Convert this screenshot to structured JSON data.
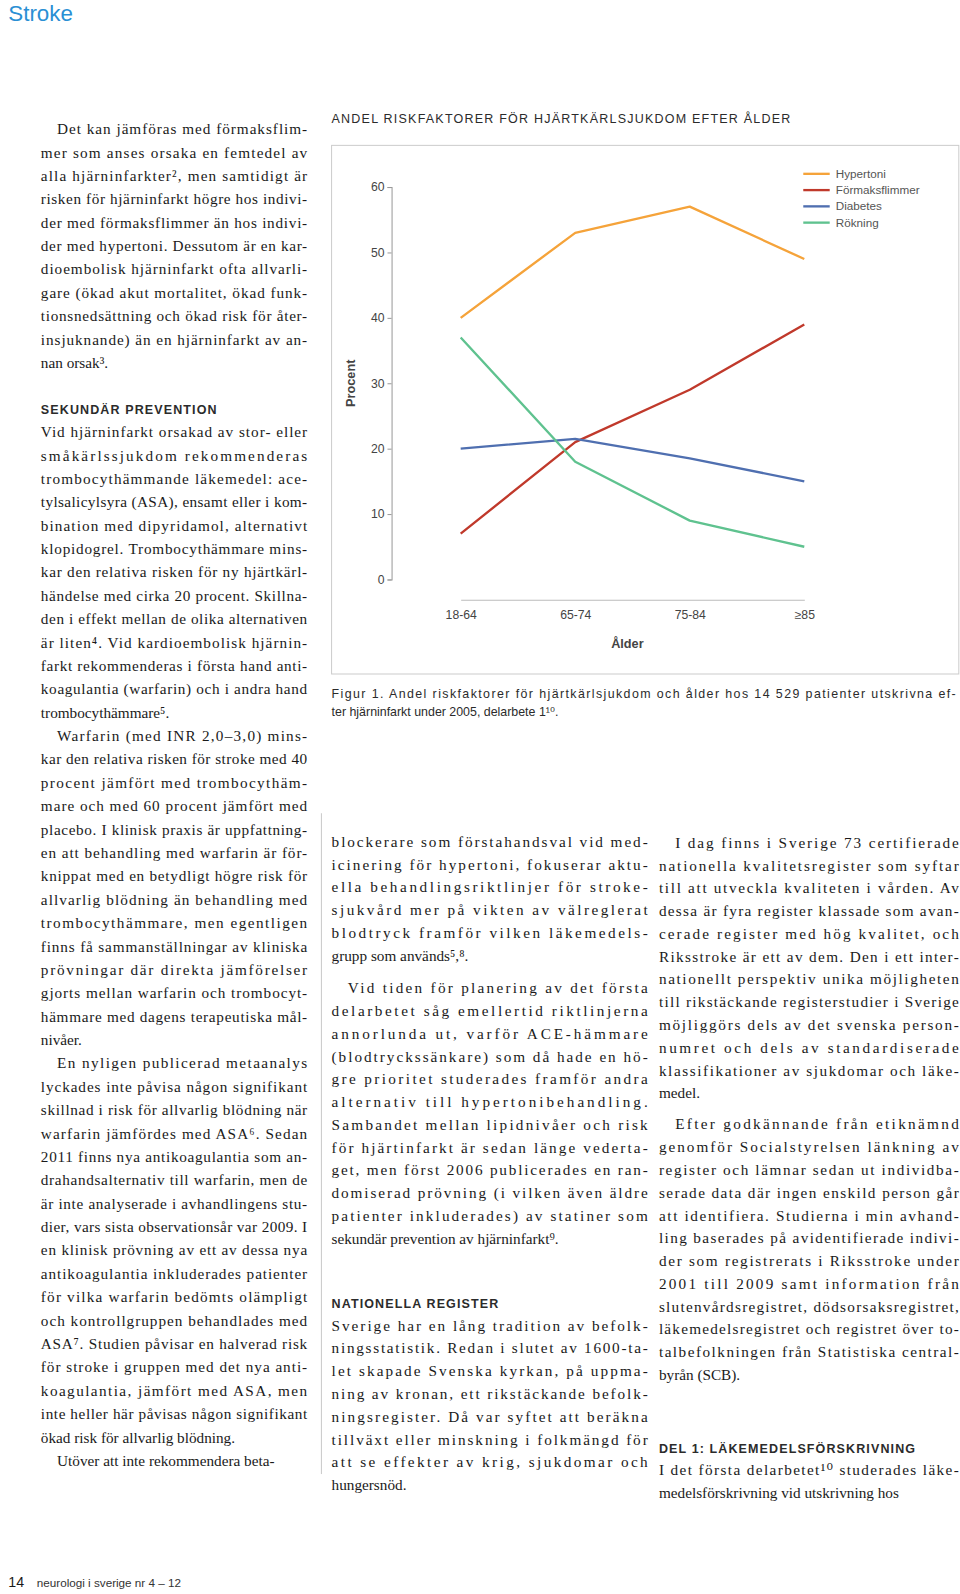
{
  "header": {
    "section": "Stroke"
  },
  "chart_data": {
    "type": "line",
    "title": "ANDEL RISKFAKTORER FÖR HJÄRTKÄRLSJUKDOM EFTER ÅLDER",
    "x_label": "Ålder",
    "y_label": "Procent",
    "categories": [
      "18-64",
      "65-74",
      "75-84",
      "≥85"
    ],
    "series": [
      {
        "name": "Hypertoni",
        "color": "#f5a33a",
        "values": [
          40,
          53,
          57,
          49
        ]
      },
      {
        "name": "Förmaksflimmer",
        "color": "#c0392b",
        "values": [
          7,
          21,
          29,
          39
        ]
      },
      {
        "name": "Diabetes",
        "color": "#4f6fb0",
        "values": [
          20,
          21.5,
          18.5,
          15
        ]
      },
      {
        "name": "Rökning",
        "color": "#5fc28f",
        "values": [
          37,
          18,
          9,
          5
        ]
      }
    ],
    "ylim": [
      0,
      60
    ],
    "yticks": [
      0,
      10,
      20,
      30,
      40,
      50,
      60
    ],
    "grid": false,
    "legend": "upper right"
  },
  "figure": {
    "caption": [
      "Figur 1. Andel riskfaktorer för hjärtkärlsjukdom och ålder hos 14 529 patienter utskrivna ef-",
      "ter hjärninfarkt under 2005, delarbete 1¹⁰."
    ]
  },
  "body": {
    "columns": [
      [
        {
          "lines": [
            "Det kan jämföras med förmaksflim-",
            "mer som anses orsaka en femtedel av",
            "alla hjärninfarkter², men samtidigt är",
            "risken för hjärninfarkt högre hos indivi-",
            "der med förmaksflimmer än hos indivi-",
            "der med hypertoni. Dessutom är en kar-",
            "dioembolisk hjärninfarkt ofta allvarli-",
            "gare (ökad akut mortalitet, ökad funk-",
            "tionsnedsättning och ökad risk för åter-",
            "insjuknande) än en hjärninfarkt av an-",
            "nan orsak³."
          ]
        },
        {
          "heading": "SEKUNDÄR PREVENTION"
        },
        {
          "lines": [
            "Vid hjärninfarkt orsakad av stor- eller",
            "småkärlssjukdom rekommenderas",
            "trombocythämmande läkemedel: ace-",
            "tylsalicylsyra (ASA), ensamt eller i kom-",
            "bination med dipyridamol, alternativt",
            "klopidogrel. Trombocythämmare mins-",
            "kar den relativa risken för ny hjärtkärl-",
            "händelse med cirka 20 procent. Skillna-",
            "den i effekt mellan de olika alternativen",
            "är liten⁴. Vid kardioembolisk hjärnin-",
            "farkt rekommenderas i första hand anti-",
            "koagulantia (warfarin) och i andra hand",
            "trombocythämmare⁵."
          ]
        },
        {
          "lines": [
            "Warfarin (med INR 2,0–3,0) mins-",
            "kar den relativa risken för stroke med 40",
            "procent jämfört med trombocythäm-",
            "mare och med 60 procent jämfört med",
            "placebo. I klinisk praxis är uppfattning-",
            "en att behandling med warfarin är för-",
            "knippat med en betydligt högre risk för",
            "allvarlig blödning än behandling med",
            "trombocythämmare, men egentligen",
            "finns få sammanställningar av kliniska",
            "prövningar där direkta jämförelser",
            "gjorts mellan warfarin och trombocyt-",
            "hämmare med dagens terapeutiska mål-",
            "nivåer."
          ]
        },
        {
          "lines": [
            "En nyligen publicerad metaanalys",
            "lyckades inte påvisa någon signifikant",
            "skillnad i risk för allvarlig blödning när",
            "warfarin jämfördes med ASA⁶. Sedan",
            "2011 finns nya antikoagulantia som an-",
            "drahandsalternativ till warfarin, men de",
            "är inte analyserade i avhandlingens stu-",
            "dier, vars sista observationsår var 2009. I",
            "en klinisk prövning av ett av dessa nya",
            "antikoagulantia inkluderades patienter",
            "för vilka warfarin bedömts olämpligt",
            "och kontrollgruppen behandlades med",
            "ASA⁷. Studien påvisar en halverad risk",
            "för stroke i gruppen med det nya anti-",
            "koagulantia, jämfört med ASA, men",
            "inte heller här påvisas någon signifikant",
            "ökad risk för allvarlig blödning."
          ]
        },
        {
          "lines": [
            "Utöver att inte rekommendera beta-"
          ]
        }
      ],
      [
        {
          "lines": [
            "blockerare som förstahandsval vid med-",
            "icinering för hypertoni, fokuserar aktu-",
            "ella behandlingsriktlinjer för stroke-",
            "sjukvård mer på vikten av välreglerat",
            "blodtryck framför vilken läkemedels-",
            "grupp som används⁵,⁸."
          ]
        },
        {
          "lines": [
            "Vid tiden för planering av det första",
            "delarbetet såg emellertid riktlinjerna",
            "annorlunda ut, varför ACE-hämmare",
            "(blodtryckssänkare) som då hade en hö-",
            "gre prioritet studerades framför andra",
            "alternativ till hypertonibehandling.",
            "Sambandet mellan lipidnivåer och risk",
            "för hjärtinfarkt är sedan länge vederta-",
            "get, men först 2006 publicerades en ran-",
            "domiserad prövning (i vilken även äldre",
            "patienter inkluderades) av statiner som",
            "sekundär prevention av hjärninfarkt⁹."
          ]
        },
        {
          "heading": "NATIONELLA REGISTER"
        },
        {
          "lines": [
            "Sverige har en lång tradition av befolk-",
            "ningsstatistik. Redan i slutet av 1600-ta-",
            "let skapade Svenska kyrkan, på uppma-",
            "ning av kronan, ett rikstäckande befolk-",
            "ningsregister. Då var syftet att beräkna",
            "tillväxt eller minskning i folkmängd för",
            "att se effekter av krig, sjukdomar och",
            "hungersnöd."
          ]
        }
      ],
      [
        {
          "lines": [
            "I dag finns i Sverige 73 certifierade",
            "nationella kvalitetsregister som syftar",
            "till att utveckla kvaliteten i vården. Av",
            "dessa är fyra register klassade som avan-",
            "cerade register med hög kvalitet, och",
            "Riksstroke är ett av dem. Den i ett inter-",
            "nationellt perspektiv unika möjligheten",
            "till rikstäckande registerstudier i Sverige",
            "möjliggörs dels av det svenska person-",
            "numret och dels av standardiserade",
            "klassifikationer av sjukdomar och läke-",
            "medel."
          ]
        },
        {
          "lines": [
            "Efter godkännande från etiknämnd",
            "genomför Socialstyrelsen länkning av",
            "register och lämnar sedan ut individba-",
            "serade data där ingen enskild person går",
            "att identifiera. Studierna i min avhand-",
            "ling baserades på avidentifierade indivi-",
            "der som registrerats i Riksstroke under",
            "2001 till 2009 samt information från",
            "slutenvårdsregistret, dödsorsaksregistret,",
            "läkemedelsregistret och registret över to-",
            "talbefolkningen från Statistiska central-",
            "byrån (SCB)."
          ]
        },
        {
          "heading": "DEL 1: LÄKEMEDELSFÖRSKRIVNING"
        },
        {
          "lines": [
            "I det första delarbetet¹⁰ studerades läke-",
            "medelsförskrivning vid utskrivning hos"
          ]
        }
      ]
    ]
  },
  "footer": {
    "page_number": "14",
    "publication": "neurologi i sverige nr 4 – 12"
  }
}
